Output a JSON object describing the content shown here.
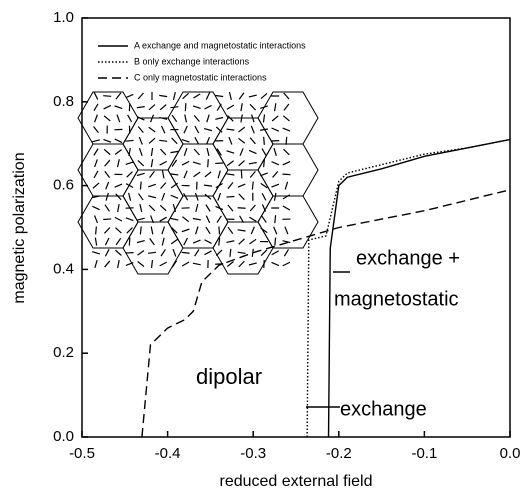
{
  "chart_data": {
    "type": "line",
    "xlabel": "reduced external field",
    "ylabel": "magnetic polarization",
    "xlim": [
      -0.5,
      0
    ],
    "ylim": [
      0,
      1
    ],
    "xticks": [
      -0.5,
      -0.4,
      -0.3,
      -0.2,
      -0.1,
      {
        "value": 0,
        "label": "0.0"
      }
    ],
    "yticks": [
      {
        "value": 0,
        "label": "0.0"
      },
      0.2,
      0.4,
      0.6,
      0.8,
      {
        "value": 1,
        "label": "1.0"
      }
    ],
    "series": [
      {
        "name": "A exchange and magnetostatic interactions",
        "color": "#000000",
        "style": "solid",
        "x": [
          -0.212,
          -0.21,
          -0.2,
          -0.19,
          -0.15,
          -0.1,
          -0.05,
          0
        ],
        "values": [
          0,
          0.45,
          0.6,
          0.62,
          0.64,
          0.67,
          0.69,
          0.71
        ]
      },
      {
        "name": "B only exchange interactions",
        "color": "#000000",
        "style": "dotted",
        "x": [
          -0.237,
          -0.235,
          -0.215,
          -0.2,
          -0.19,
          -0.15,
          -0.1,
          -0.05,
          0
        ],
        "values": [
          0,
          0.47,
          0.48,
          0.61,
          0.63,
          0.65,
          0.675,
          0.69,
          0.71
        ]
      },
      {
        "name": "C only magnetostatic interactions",
        "color": "#000000",
        "style": "dashed",
        "x": [
          -0.43,
          -0.42,
          -0.4,
          -0.38,
          -0.37,
          -0.36,
          -0.34,
          -0.3,
          -0.25,
          -0.2,
          -0.15,
          -0.1,
          -0.05,
          0
        ],
        "values": [
          0,
          0.22,
          0.26,
          0.28,
          0.3,
          0.37,
          0.41,
          0.44,
          0.47,
          0.5,
          0.52,
          0.54,
          0.565,
          0.59
        ]
      }
    ],
    "annotations": [
      "dipolar",
      "exchange +",
      "magnetostatic",
      "exchange"
    ]
  }
}
